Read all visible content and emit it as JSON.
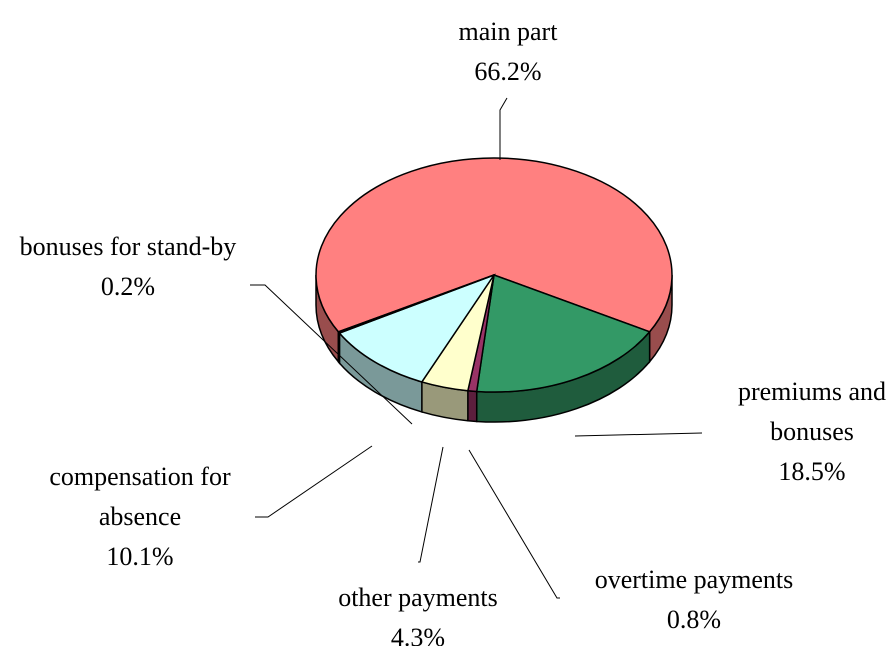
{
  "chart_data": {
    "type": "pie",
    "categories": [
      "main part",
      "premiums and bonuses",
      "overtime payments",
      "other payments",
      "compensation for absence",
      "bonuses for stand-by"
    ],
    "values": [
      66.2,
      18.5,
      0.8,
      4.3,
      10.1,
      0.2
    ],
    "value_labels": [
      "66.2%",
      "18.5%",
      "0.8%",
      "4.3%",
      "10.1%",
      "0.2%"
    ],
    "colors": [
      "#ff8080",
      "#339966",
      "#993366",
      "#ffffcc",
      "#ccffff",
      "#660066"
    ]
  }
}
